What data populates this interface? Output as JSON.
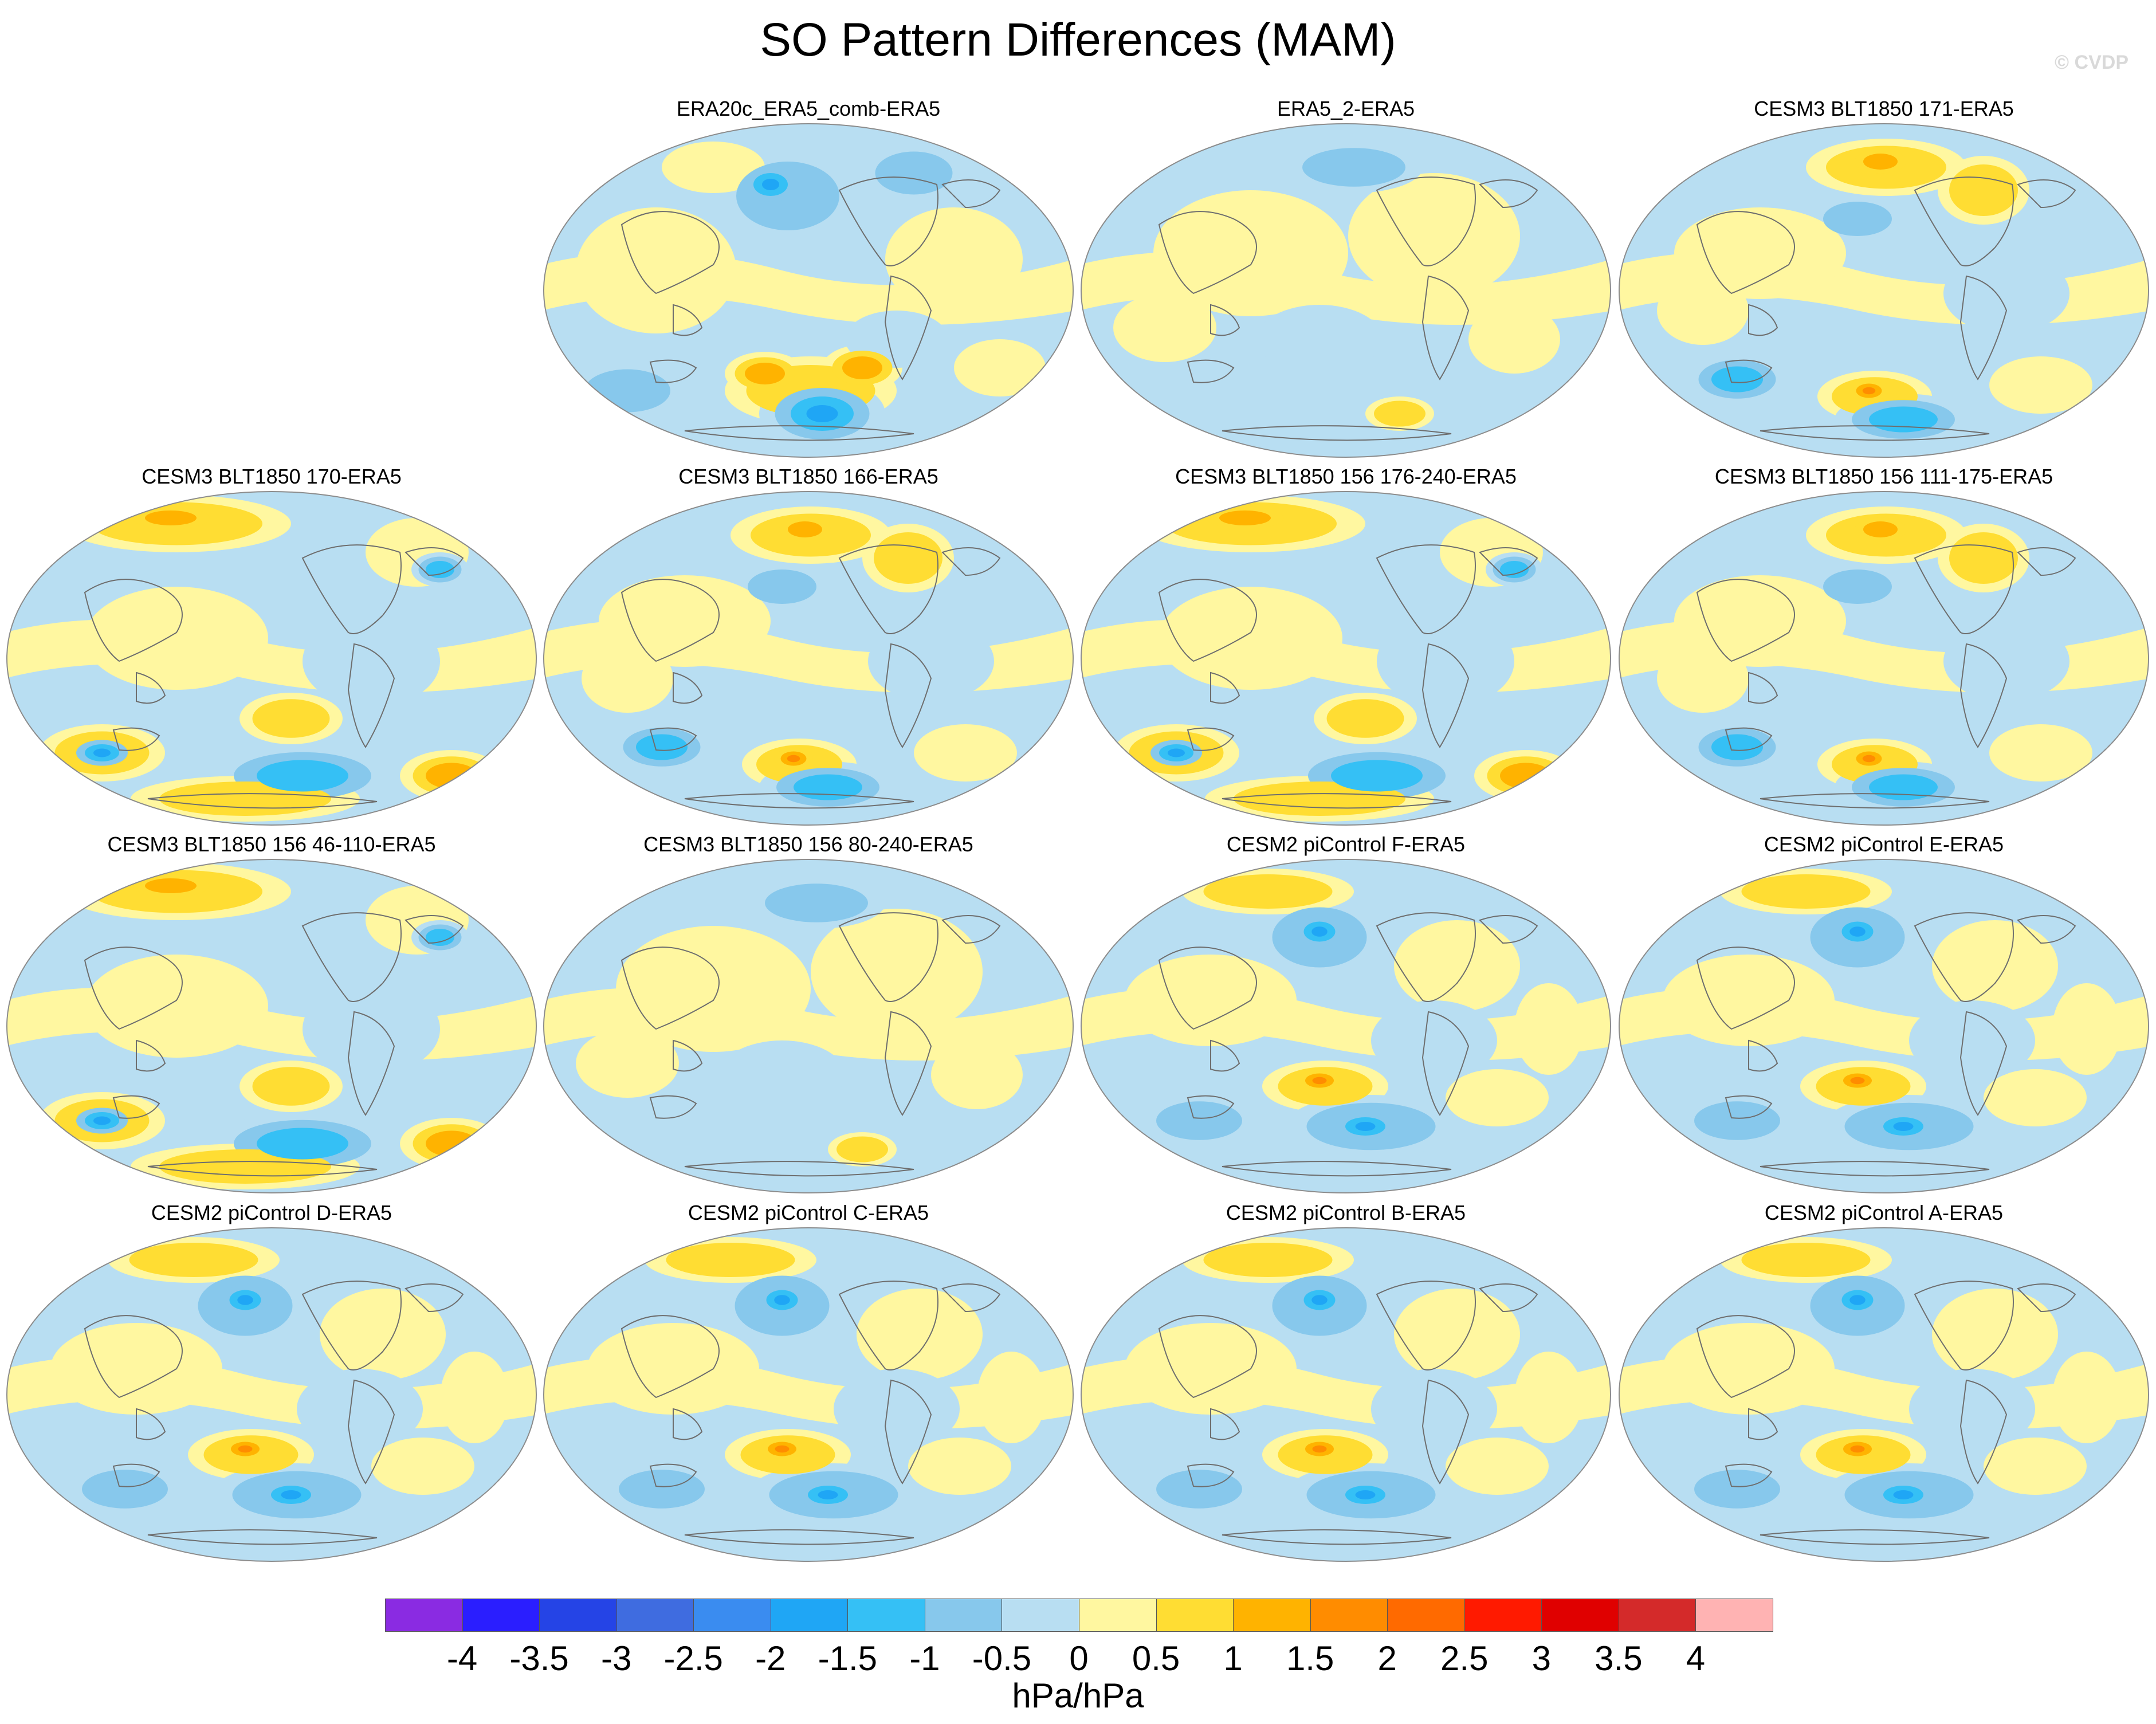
{
  "figure": {
    "title": "SO Pattern Differences (MAM)",
    "watermark": "© CVDP",
    "units": "hPa/hPa"
  },
  "panels": [
    {
      "title": "ERA20c_ERA5_comb-ERA5",
      "row": 0,
      "col": 1,
      "variant": 0
    },
    {
      "title": "ERA5_2-ERA5",
      "row": 0,
      "col": 2,
      "variant": 1
    },
    {
      "title": "CESM3 BLT1850 171-ERA5",
      "row": 0,
      "col": 3,
      "variant": 2
    },
    {
      "title": "CESM3 BLT1850 170-ERA5",
      "row": 1,
      "col": 0,
      "variant": 3
    },
    {
      "title": "CESM3 BLT1850 166-ERA5",
      "row": 1,
      "col": 1,
      "variant": 2
    },
    {
      "title": "CESM3 BLT1850 156 176-240-ERA5",
      "row": 1,
      "col": 2,
      "variant": 3
    },
    {
      "title": "CESM3 BLT1850 156 111-175-ERA5",
      "row": 1,
      "col": 3,
      "variant": 2
    },
    {
      "title": "CESM3 BLT1850 156 46-110-ERA5",
      "row": 2,
      "col": 0,
      "variant": 3
    },
    {
      "title": "CESM3 BLT1850 156 80-240-ERA5",
      "row": 2,
      "col": 1,
      "variant": 1
    },
    {
      "title": "CESM2 piControl F-ERA5",
      "row": 2,
      "col": 2,
      "variant": 4
    },
    {
      "title": "CESM2 piControl E-ERA5",
      "row": 2,
      "col": 3,
      "variant": 4
    },
    {
      "title": "CESM2 piControl D-ERA5",
      "row": 3,
      "col": 0,
      "variant": 4
    },
    {
      "title": "CESM2 piControl C-ERA5",
      "row": 3,
      "col": 1,
      "variant": 4
    },
    {
      "title": "CESM2 piControl B-ERA5",
      "row": 3,
      "col": 2,
      "variant": 4
    },
    {
      "title": "CESM2 piControl A-ERA5",
      "row": 3,
      "col": 3,
      "variant": 4
    }
  ],
  "colorbar": {
    "colors": [
      "#8a2be2",
      "#2a1eff",
      "#2544e6",
      "#3f6ce0",
      "#3a8cf0",
      "#1fa6f5",
      "#35c0f5",
      "#87c8ec",
      "#b8def2",
      "#fff7a0",
      "#ffdd33",
      "#ffb300",
      "#ff8c00",
      "#ff6a00",
      "#ff1a00",
      "#e00000",
      "#d42a2a",
      "#ffb3b3"
    ],
    "labels": [
      "-4",
      "-3.5",
      "-3",
      "-2.5",
      "-2",
      "-1.5",
      "-1",
      "-0.5",
      "0",
      "0.5",
      "1",
      "1.5",
      "2",
      "2.5",
      "3",
      "3.5",
      "4"
    ]
  },
  "fill_colors": {
    "neg_weak": "#b8def2",
    "neg_mid": "#87c8ec",
    "neg_strong": "#35c0f5",
    "neg_core": "#1fa6f5",
    "pos_weak": "#fff7a0",
    "pos_mid": "#ffdd33",
    "pos_strong": "#ffb300",
    "pos_core": "#ff8c00",
    "coast": "#6e6e6e",
    "outline": "#8c8c8c"
  }
}
